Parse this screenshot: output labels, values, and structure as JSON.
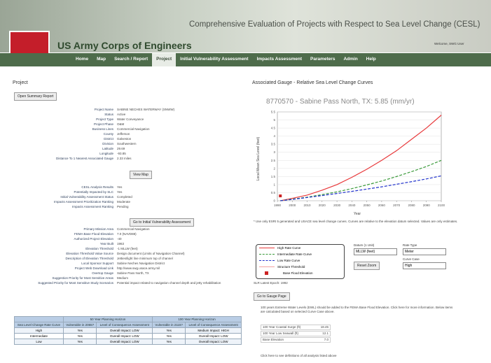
{
  "header": {
    "title": "Comprehensive Evaluation of Projects with Respect to Sea Level Change (CESL)",
    "org": "US Army Corps of Engineers",
    "welcome": "Welcome, SWG User"
  },
  "nav": [
    "Home",
    "Map",
    "Search / Report",
    "Project",
    "Initial Vulnerability Assessment",
    "Impacts Assessment",
    "Parameters",
    "Admin",
    "Help"
  ],
  "nav_active": 3,
  "project": {
    "heading": "Project",
    "summary_button": "Open Summary Report",
    "fields": [
      {
        "label": "Project Name",
        "value": "SABINE NECHES WATERWAY (SNWW)"
      },
      {
        "label": "Status",
        "value": "Active"
      },
      {
        "label": "Project Type",
        "value": "Water Conveyance"
      },
      {
        "label": "Project Phase",
        "value": "O&M"
      },
      {
        "label": "Business Lines",
        "value": "Commercial Navigation"
      },
      {
        "label": "County",
        "value": "Jefferson"
      },
      {
        "label": "District",
        "value": "Galveston"
      },
      {
        "label": "Division",
        "value": "Southwestern"
      },
      {
        "label": "Latitude",
        "value": "29.69"
      },
      {
        "label": "Longitude",
        "value": "-93.85"
      },
      {
        "label": "Distance To 1 Nearest Associated Gauge",
        "value": "2.33 miles"
      }
    ],
    "map_button": "View Map",
    "fields2": [
      {
        "label": "CESL Analysis Results",
        "value": "Yes"
      },
      {
        "label": "Potentially Impacted by SLC",
        "value": "Yes"
      },
      {
        "label": "Initial Vulnerability Assessment Status",
        "value": "Completed"
      },
      {
        "label": "Impacts Assessment Prioritization Ranking",
        "value": "Moderate"
      },
      {
        "label": "Impacts Assessment Ranking",
        "value": "Pending"
      }
    ],
    "iva_button": "Go to Initial Vulnerability Assessment",
    "fields3": [
      {
        "label": "Primary Mission Area",
        "value": "Commercial Navigation"
      },
      {
        "label": "FEMA Base Flood Elevation",
        "value": "7.0 (NAVD88)"
      },
      {
        "label": "Authorized Project Elevation",
        "value": "-40"
      },
      {
        "label": "Year Built",
        "value": "1963"
      },
      {
        "label": "Elevation Threshold",
        "value": "-1 MLLW (feet)"
      },
      {
        "label": "Elevation Threshold Value Source",
        "value": "Design document (Limits of Navigation Channel)"
      },
      {
        "label": "Description of Elevation Threshold",
        "value": "Jetties/light line minimum top of channel"
      },
      {
        "label": "Local Sponsor Support",
        "value": "Sabine Neches Navigation District"
      },
      {
        "label": "Project Web Download Link",
        "value": "http://www.swg.usace.army.mil"
      },
      {
        "label": "Overtop Gauge",
        "value": "Sabine Pass North, TX"
      },
      {
        "label": "Suggestion Priority for Most Sensitive Areas",
        "value": "Medium"
      },
      {
        "label": "Suggested Priority for Most Sensitive Study Scenarios",
        "value": "Potential impact related to navigation channel depth and jetty rehabilitation"
      }
    ],
    "table": {
      "groups": [
        "50 Year Planning Horizon",
        "100 Year Planning Horizon"
      ],
      "columns": [
        "Sea Level Change Rate Curve",
        "Vulnerable in 2065?",
        "Level of Consequence Assessment",
        "Vulnerable in 2115?",
        "Level of Consequence Assessment"
      ],
      "rows": [
        [
          "High",
          "Yes",
          "Overall Impact: LOW",
          "Yes",
          "Medium Impact: HIGH"
        ],
        [
          "Intermediate",
          "Yes",
          "Overall Impact: LOW",
          "Yes",
          "Overall Impact: LOW"
        ],
        [
          "Low",
          "Yes",
          "Overall Impact: LOW",
          "Yes",
          "Overall Impact: LOW"
        ]
      ]
    }
  },
  "gauge": {
    "heading": "Associated Gauge - Relative Sea Level Change Curves",
    "chart_data": {
      "type": "line",
      "title": "8770570 - Sabine Pass North, TX: 5.85 (mm/yr)",
      "x_label": "Year",
      "y_label": "Local Mean Sea Level (feet)",
      "x": [
        1992,
        2000,
        2010,
        2020,
        2030,
        2040,
        2050,
        2060,
        2070,
        2080,
        2090,
        2100
      ],
      "xlim": [
        1990,
        2100
      ],
      "xticks": [
        1990,
        2000,
        2010,
        2020,
        2030,
        2040,
        2050,
        2060,
        2070,
        2080,
        2090,
        2100
      ],
      "ylim": [
        0,
        5.5
      ],
      "yticks": [
        0,
        0.5,
        1,
        1.5,
        2,
        2.5,
        3,
        3.5,
        4,
        4.5,
        5,
        5.5
      ],
      "grid": true,
      "series": [
        {
          "name": "High Rate Curve",
          "color": "#e8393b",
          "dash": false,
          "values": [
            0,
            0.15,
            0.35,
            0.65,
            1.0,
            1.45,
            1.95,
            2.5,
            3.1,
            3.8,
            4.5,
            5.3
          ]
        },
        {
          "name": "Intermediate Rate Curve",
          "color": "#3a9a3a",
          "dash": true,
          "values": [
            0,
            0.1,
            0.22,
            0.38,
            0.55,
            0.75,
            0.98,
            1.22,
            1.5,
            1.8,
            2.12,
            2.5
          ]
        },
        {
          "name": "Low Rate Curve",
          "color": "#2233cc",
          "dash": true,
          "values": [
            0,
            0.08,
            0.2,
            0.32,
            0.45,
            0.58,
            0.72,
            0.86,
            1.02,
            1.18,
            1.35,
            1.54
          ]
        }
      ],
      "structure_threshold": {
        "name": "Structure Threshold",
        "color": "#f2a3a3"
      },
      "base_flood_elevation": {
        "name": "Base Flood Elevation",
        "x": 1992,
        "value": 0.3,
        "color": "#cc2222"
      }
    },
    "note": "* Use only ESRI 5 generated and USACE sea level change curves. Curves are relative to the elevation datum selected. Values are only estimates.",
    "controls": {
      "datum_label": "Datum (1 Unit)",
      "datum": "MLLW (feet)",
      "rate_label": "Rate Type",
      "rate": "Meter",
      "reset": "Reset Zoom",
      "curve_label": "Curve Case",
      "curve": "High"
    },
    "epoch": "SLR Latest Epoch: 1992",
    "gauge_button": "Go to Gauge Page",
    "info": "100 years Extreme Water Levels (EWL) should be added to the FEMA Base Flood Elevation. Click here for more information. Below items are calculated based on selected Curve Case above.",
    "surge": [
      {
        "label": "100 Year Coastal Surge (ft)",
        "value": "18.45"
      },
      {
        "label": "100 Year Low Seawall (ft)",
        "value": "12.1"
      },
      {
        "label": "Base Elevation",
        "value": "7.0"
      }
    ],
    "footer_link": "Click here to see definitions of all analysis listed above"
  }
}
